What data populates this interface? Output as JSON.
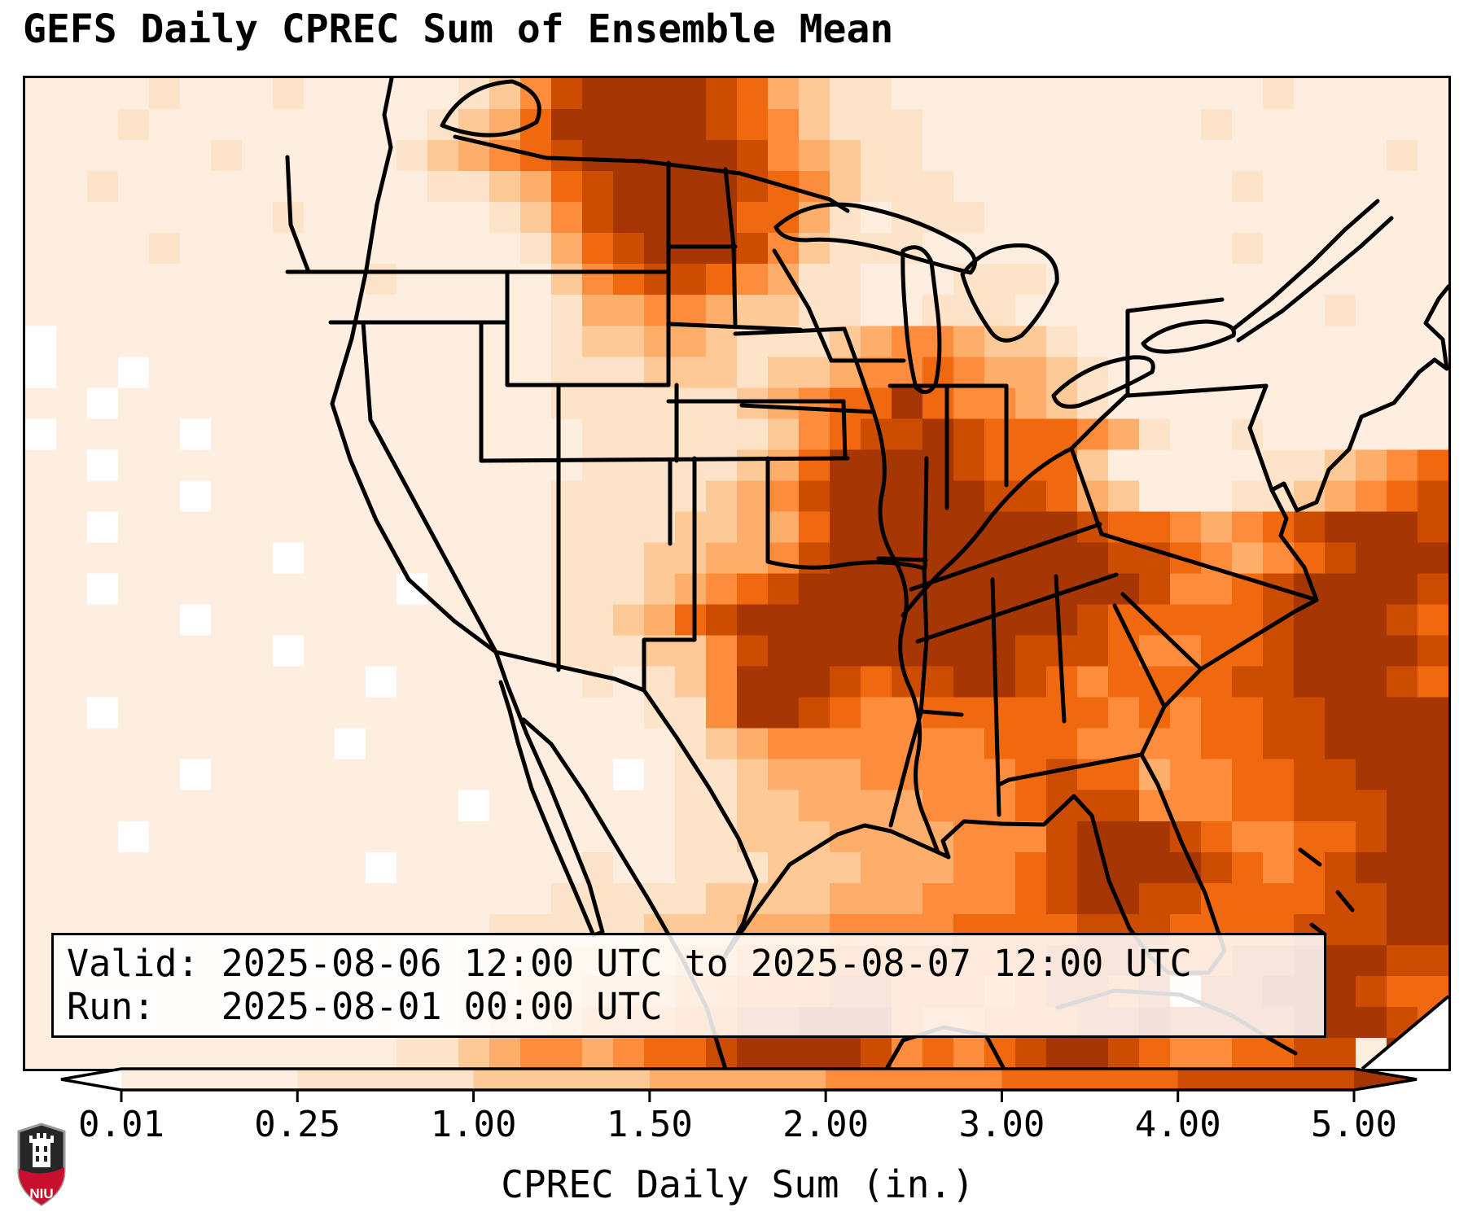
{
  "title": "GEFS Daily CPREC Sum of Ensemble Mean",
  "info_box": {
    "valid_line": "Valid: 2025-08-06 12:00 UTC to 2025-08-07 12:00 UTC",
    "run_line": "Run:   2025-08-01 00:00 UTC"
  },
  "colorbar": {
    "label": "CPREC Daily Sum (in.)",
    "tick_labels": [
      "0.01",
      "0.25",
      "1.00",
      "1.50",
      "2.00",
      "3.00",
      "4.00",
      "5.00"
    ],
    "boundaries": [
      0.01,
      0.25,
      1.0,
      1.5,
      2.0,
      3.0,
      4.0,
      5.0
    ],
    "extend": "both",
    "under_color": "#ffffff",
    "segment_colors": [
      "#fdeee0",
      "#fde3c8",
      "#fdc997",
      "#fdae6b",
      "#fd8d3c",
      "#f1690e",
      "#cc4c02"
    ],
    "over_color": "#a63603"
  },
  "logo": {
    "text": "NIU"
  },
  "chart_data": {
    "type": "heatmap",
    "title": "GEFS Daily CPREC Sum of Ensemble Mean",
    "variable": "CPREC Daily Sum",
    "units": "in.",
    "valid": "2025-08-06 12:00 UTC to 2025-08-07 12:00 UTC",
    "run": "2025-08-01 00:00 UTC",
    "region": "Contiguous United States with surrounding Canada, Mexico, Gulf of Mexico and western Atlantic",
    "levels_in": [
      0.01,
      0.25,
      1.0,
      1.5,
      2.0,
      3.0,
      4.0,
      5.0
    ],
    "colorbar_extend": "both",
    "legend_position": "bottom",
    "grid_note": "Approximate 46x32 grid of daily precipitation bins read from the map. Digit k (1-7) = value between levels_in[k-1] and levels_in[k]; 0 = below 0.01 in; 8 = above 5.00 in. Maxima: northern Minnesota/Dakotas band, Kentucky-Tennessee-Deep South, Louisiana coast, south Florida, and a SW-NE band over the western Atlantic.",
    "grid": [
      "1111211121111123578888764322111111111111211111",
      "1112111111111234688888765322211111111121111111",
      "1111112111112345678888875432211111111111111121",
      "1121111111111223467888876532221111111112111111",
      "1111111121111112357888866421222111111111111111",
      "1111211111111111246788875322211111111112111111",
      "1111111111121111135677654221112221111111111111",
      "1111111111111111124455433221122211111111112111",
      "0111111111111111123344322234554332111111111111",
      "0110111111111111122233323345565443211111111111",
      "1101111111111111122222234566865543211111111111",
      "0111101111111111112222223567787666542112111111",
      "1101111111111111112222234688887666311111223456",
      "1111101111111111122222345788888776431112234567",
      "1101111111111111122223344688888888766545678887",
      "1111111101111111122233445788888888877654567888",
      "1101111111110111122234567888888888887556788887",
      "1111101111111111122346788888888888766666788876",
      "1111111101111111122233578888888877765566788887",
      "1111111111101111112123588876778876566667788876",
      "1101111111111111111122588765566666656566778888",
      "1111111111011111111112345555555666555566778888",
      "1111101111111111111012234445555567664556677888",
      "1111111111111101111112233444455567775556677788",
      "1110111111111111111112233344445557888765566788",
      "1111111111101111112112223334445567888876567888",
      "1111111111111111122222333344455567887766667788",
      "1111111111111112222233344455556666777666677788",
      "1111111111111122233334455566666667776667788877",
      "1111111111111122334445566677666567767 77888766",
      "1111111111111123345556677888655666778777788876",
      "1111111111112234554566788887565678876556677 8"
    ]
  }
}
